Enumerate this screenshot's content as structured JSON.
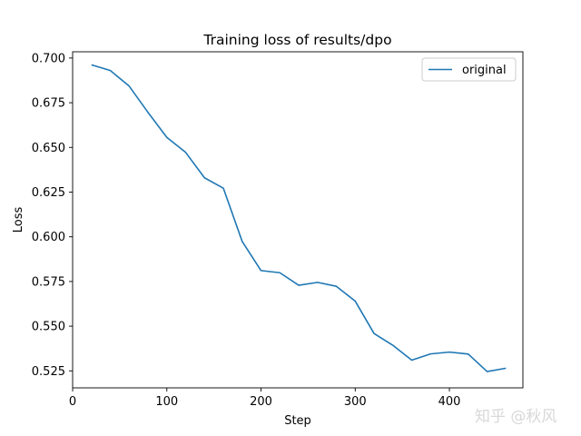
{
  "chart_data": {
    "type": "line",
    "title": "Training loss of results/dpo",
    "xlabel": "Step",
    "ylabel": "Loss",
    "xlim": [
      0,
      478
    ],
    "ylim": [
      0.5155,
      0.7035
    ],
    "xticks": [
      0,
      100,
      200,
      300,
      400
    ],
    "yticks": [
      0.525,
      0.55,
      0.575,
      0.6,
      0.625,
      0.65,
      0.675,
      0.7
    ],
    "ytick_labels": [
      "0.525",
      "0.550",
      "0.575",
      "0.600",
      "0.625",
      "0.650",
      "0.675",
      "0.700"
    ],
    "grid": false,
    "legend_position": "top-right",
    "series": [
      {
        "name": "original",
        "color": "#1f77b4",
        "x": [
          20,
          40,
          60,
          80,
          100,
          120,
          140,
          160,
          180,
          200,
          220,
          240,
          260,
          280,
          300,
          320,
          340,
          360,
          380,
          400,
          420,
          440,
          460
        ],
        "y": [
          0.6962,
          0.693,
          0.6843,
          0.6696,
          0.6556,
          0.6472,
          0.633,
          0.6272,
          0.5974,
          0.5811,
          0.5799,
          0.5729,
          0.5745,
          0.5723,
          0.564,
          0.5459,
          0.5393,
          0.531,
          0.5345,
          0.5355,
          0.5344,
          0.5246,
          0.5265
        ]
      }
    ]
  },
  "watermark": "知乎 @秋风"
}
